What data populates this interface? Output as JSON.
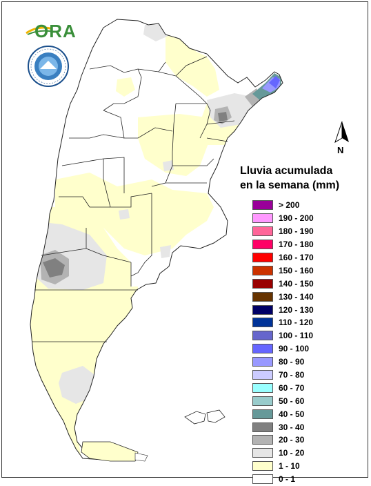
{
  "logo_text": "ORA",
  "smn_seal_text": "SERVICIO METEOROLOGICO NACIONAL · ARGENTINA",
  "north_label": "N",
  "legend": {
    "title_line1": "Lluvia acumulada",
    "title_line2": "en la semana (mm)",
    "classes": [
      {
        "label": "> 200",
        "color": "#990099"
      },
      {
        "label": "190 - 200",
        "color": "#ff99ff"
      },
      {
        "label": "180 - 190",
        "color": "#ff6699"
      },
      {
        "label": "170 - 180",
        "color": "#ff0066"
      },
      {
        "label": "160 - 170",
        "color": "#ff0000"
      },
      {
        "label": "150 - 160",
        "color": "#cc3300"
      },
      {
        "label": "140 - 150",
        "color": "#990000"
      },
      {
        "label": "130 - 140",
        "color": "#663300"
      },
      {
        "label": "120 - 130",
        "color": "#000066"
      },
      {
        "label": "110 - 120",
        "color": "#003399"
      },
      {
        "label": "100 - 110",
        "color": "#6666cc"
      },
      {
        "label": "90 - 100",
        "color": "#6666ff"
      },
      {
        "label": "80 - 90",
        "color": "#9999ff"
      },
      {
        "label": "70 - 80",
        "color": "#ccccff"
      },
      {
        "label": "60 - 70",
        "color": "#99ffff"
      },
      {
        "label": "50 - 60",
        "color": "#99cccc"
      },
      {
        "label": "40 - 50",
        "color": "#669999"
      },
      {
        "label": "30 - 40",
        "color": "#808080"
      },
      {
        "label": "20 - 30",
        "color": "#b3b3b3"
      },
      {
        "label": "10 - 20",
        "color": "#e6e6e6"
      },
      {
        "label": "1 - 10",
        "color": "#ffffcc"
      },
      {
        "label": "0 - 1",
        "color": "#ffffff"
      }
    ]
  }
}
